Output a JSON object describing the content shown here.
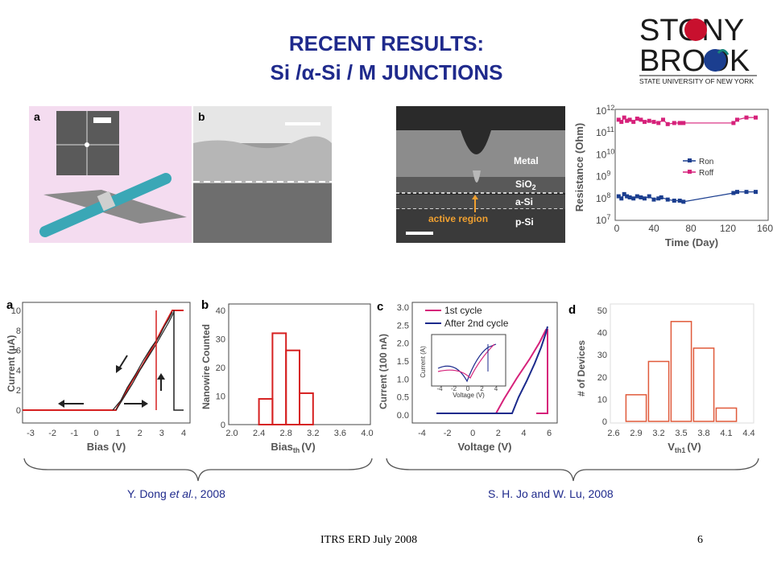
{
  "title": {
    "line1": "RECENT RESULTS:",
    "line2": "Si /α-Si / M JUNCTIONS"
  },
  "logo": {
    "word1": "STONY",
    "word2": "BROOK",
    "subtitle": "STATE UNIVERSITY OF NEW YORK",
    "colors": {
      "red": "#c8102e",
      "blue": "#1b3e8f",
      "teal": "#18847a"
    }
  },
  "panels": {
    "nanowire": {
      "label_a": "a",
      "label_b": "b"
    },
    "cross_section": {
      "metal": "Metal",
      "sio2": "SiO",
      "sio2_sub": "2",
      "asi": "a-Si",
      "psi": "p-Si",
      "active": "active region"
    },
    "bias": {
      "label": "a",
      "ticks_x": [
        "-3",
        "-2",
        "-1",
        "0",
        "1",
        "2",
        "3",
        "4"
      ],
      "ticks_y": [
        "0",
        "2",
        "4",
        "6",
        "8",
        "10"
      ]
    },
    "histogram_bias": {
      "label": "b",
      "ticks_x": [
        "2.0",
        "2.4",
        "2.8",
        "3.2",
        "3.6",
        "4.0"
      ],
      "ticks_y": [
        "0",
        "10",
        "20",
        "30",
        "40"
      ]
    },
    "voltage": {
      "label": "c",
      "ticks_x": [
        "-4",
        "-2",
        "0",
        "2",
        "4",
        "6"
      ],
      "ticks_y": [
        "0.0",
        "0.5",
        "1.0",
        "1.5",
        "2.0",
        "2.5",
        "3.0"
      ],
      "inset_ticks_x": [
        "-4",
        "-2",
        "0",
        "2",
        "4"
      ]
    },
    "histogram_vth": {
      "label": "d",
      "ticks_x": [
        "2.6",
        "2.9",
        "3.2",
        "3.5",
        "3.8",
        "4.1",
        "4.4"
      ],
      "ticks_y": [
        "0",
        "10",
        "20",
        "30",
        "40",
        "50"
      ]
    }
  },
  "chart_data": [
    {
      "type": "line",
      "xlabel": "Bias (V)",
      "ylabel": "Current (μA)",
      "xlim": [
        -3.3,
        4.3
      ],
      "ylim": [
        -0.5,
        11
      ]
    },
    {
      "type": "bar",
      "xlabel": "Bias",
      "xlabel_sub": "th",
      "xlabel_unit": "(V)",
      "ylabel": "Nanowire Counted",
      "categories": [
        "2.4-2.6",
        "2.6-2.8",
        "2.8-3.0",
        "3.0-3.2",
        "3.2-3.4"
      ],
      "values": [
        9,
        32,
        26,
        11,
        0
      ],
      "xlim": [
        2.0,
        4.0
      ],
      "ylim": [
        0,
        40
      ]
    },
    {
      "type": "line",
      "xlabel": "Voltage (V)",
      "ylabel": "Current (100 nA)",
      "xlim": [
        -4.5,
        6.5
      ],
      "ylim": [
        0,
        3.0
      ],
      "series": [
        {
          "name": "1st cycle",
          "color": "#d6217a"
        },
        {
          "name": "After 2nd cycle",
          "color": "#1b2a8c"
        }
      ],
      "inset": {
        "xlabel": "Voltage (V)",
        "ylabel": "Current (A)"
      }
    },
    {
      "type": "bar",
      "xlabel": "V",
      "xlabel_sub": "th1",
      "xlabel_unit": "(V)",
      "ylabel": "# of Devices",
      "categories": [
        "2.9",
        "3.2",
        "3.5",
        "3.8",
        "4.1"
      ],
      "values": [
        12,
        27,
        45,
        33,
        6
      ],
      "xlim": [
        2.6,
        4.4
      ],
      "ylim": [
        0,
        50
      ]
    },
    {
      "type": "line",
      "xlabel": "Time (Day)",
      "ylabel": "Resistance (Ohm)",
      "xlim": [
        0,
        160
      ],
      "ylim_log10": [
        7,
        12
      ],
      "x_ticks": [
        "0",
        "40",
        "80",
        "120",
        "160"
      ],
      "y_tick_exponents": [
        "7",
        "8",
        "9",
        "10",
        "11",
        "12"
      ],
      "y_tick_base": "10",
      "series": [
        {
          "name": "Ron",
          "color": "#1b3e8f",
          "x": [
            2,
            5,
            8,
            11,
            14,
            18,
            22,
            26,
            30,
            35,
            40,
            45,
            48,
            55,
            62,
            68,
            72,
            126,
            130,
            140,
            150
          ],
          "log10_y": [
            8.1,
            8.0,
            8.2,
            8.1,
            8.05,
            8.0,
            8.1,
            8.05,
            8.0,
            8.1,
            7.95,
            8.0,
            8.05,
            7.95,
            7.9,
            7.9,
            7.85,
            8.25,
            8.3,
            8.3,
            8.3
          ]
        },
        {
          "name": "Roff",
          "color": "#d6217a",
          "x": [
            2,
            5,
            8,
            11,
            14,
            18,
            22,
            26,
            30,
            35,
            40,
            45,
            50,
            55,
            62,
            68,
            72,
            126,
            130,
            140,
            150
          ],
          "log10_y": [
            11.6,
            11.5,
            11.7,
            11.55,
            11.6,
            11.5,
            11.65,
            11.6,
            11.5,
            11.55,
            11.5,
            11.45,
            11.6,
            11.4,
            11.45,
            11.45,
            11.45,
            11.45,
            11.6,
            11.7,
            11.7
          ]
        }
      ]
    }
  ],
  "citations": {
    "left_prefix": "Y. Dong ",
    "left_italic": "et al.",
    "left_suffix": ", 2008",
    "right": "S. H. Jo and W. Lu, 2008"
  },
  "footer": {
    "text": "ITRS ERD July 2008",
    "page": "6"
  }
}
